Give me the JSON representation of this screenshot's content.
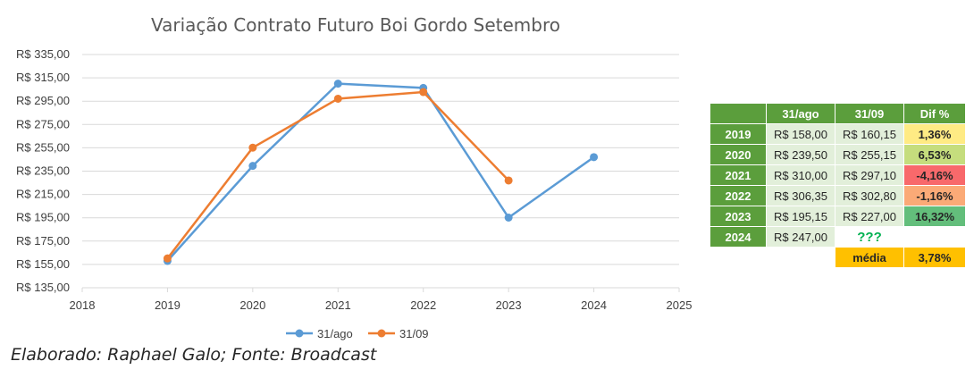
{
  "chart_data": {
    "type": "line",
    "title": "Variação Contrato Futuro Boi Gordo Setembro",
    "xlim": [
      2018,
      2025
    ],
    "ylim": [
      135,
      335
    ],
    "x_ticks": [
      "2018",
      "2019",
      "2020",
      "2021",
      "2022",
      "2023",
      "2024",
      "2025"
    ],
    "y_ticks": [
      "R$ 135,00",
      "R$ 155,00",
      "R$ 175,00",
      "R$ 195,00",
      "R$ 215,00",
      "R$ 235,00",
      "R$ 255,00",
      "R$ 275,00",
      "R$ 295,00",
      "R$ 315,00",
      "R$ 335,00"
    ],
    "grid": true,
    "legend_position": "bottom",
    "series": [
      {
        "name": "31/ago",
        "color": "#5b9bd5",
        "points": [
          [
            2019,
            158.0
          ],
          [
            2020,
            239.5
          ],
          [
            2021,
            310.0
          ],
          [
            2022,
            306.35
          ],
          [
            2023,
            195.15
          ],
          [
            2024,
            247.0
          ]
        ]
      },
      {
        "name": "31/09",
        "color": "#ed7d31",
        "points": [
          [
            2019,
            160.15
          ],
          [
            2020,
            255.15
          ],
          [
            2021,
            297.1
          ],
          [
            2022,
            302.8
          ],
          [
            2023,
            227.0
          ]
        ]
      }
    ]
  },
  "credit": "Elaborado: Raphael Galo; Fonte: Broadcast",
  "table": {
    "headers": [
      "",
      "31/ago",
      "31/09",
      "Dif %"
    ],
    "rows": [
      {
        "year": "2019",
        "ago": "R$ 158,00",
        "set": "R$ 160,15",
        "dif": "1,36%",
        "dif_color": "#ffeb84"
      },
      {
        "year": "2020",
        "ago": "R$ 239,50",
        "set": "R$ 255,15",
        "dif": "6,53%",
        "dif_color": "#c5dd7d"
      },
      {
        "year": "2021",
        "ago": "R$ 310,00",
        "set": "R$ 297,10",
        "dif": "-4,16%",
        "dif_color": "#f8696b"
      },
      {
        "year": "2022",
        "ago": "R$ 306,35",
        "set": "R$ 302,80",
        "dif": "-1,16%",
        "dif_color": "#fbaa77"
      },
      {
        "year": "2023",
        "ago": "R$ 195,15",
        "set": "R$ 227,00",
        "dif": "16,32%",
        "dif_color": "#63be7b"
      },
      {
        "year": "2024",
        "ago": "R$ 247,00",
        "set": "???",
        "dif": "",
        "dif_color": "#ffffff"
      }
    ],
    "media_label": "média",
    "media_value": "3,78%"
  }
}
